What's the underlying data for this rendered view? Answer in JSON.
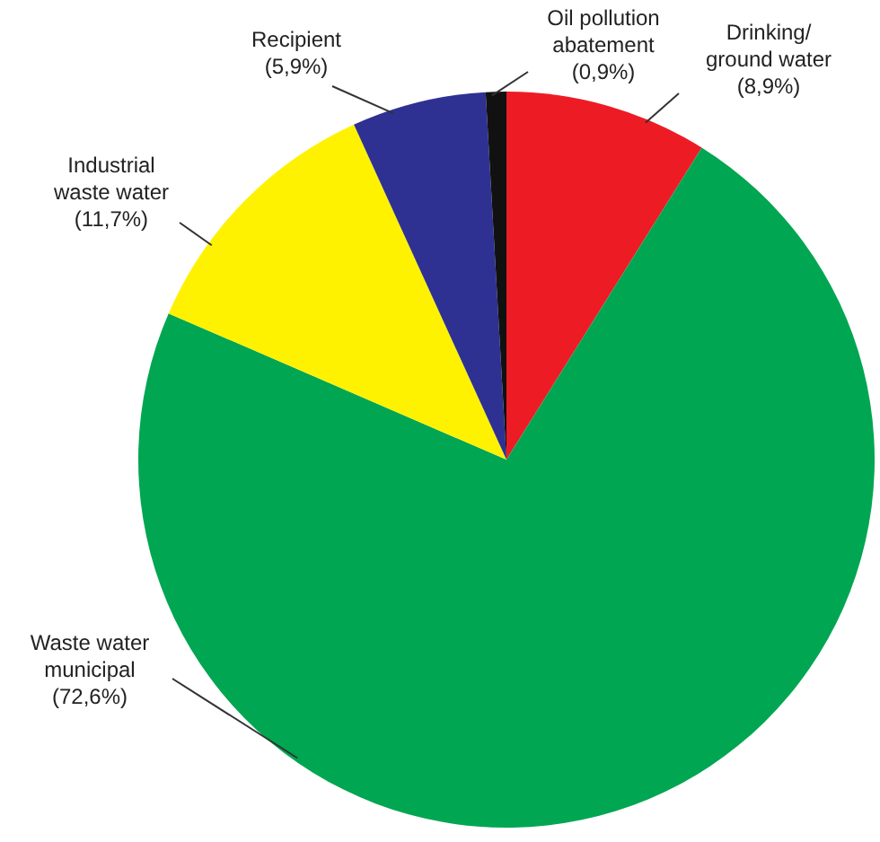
{
  "chart_data": {
    "type": "pie",
    "categories": [
      "Drinking/\nground water",
      "Waste water\nmunicipal",
      "Industrial\nwaste water",
      "Recipient",
      "Oil pollution\nabatement"
    ],
    "values": [
      8.9,
      72.6,
      11.7,
      5.9,
      0.9
    ],
    "colors": [
      "#ed1c24",
      "#00a651",
      "#fff200",
      "#2e3192",
      "#111111"
    ],
    "value_labels": [
      "(8,9%)",
      "(72,6%)",
      "(11,7%)",
      "(5,9%)",
      "(0,9%)"
    ]
  }
}
